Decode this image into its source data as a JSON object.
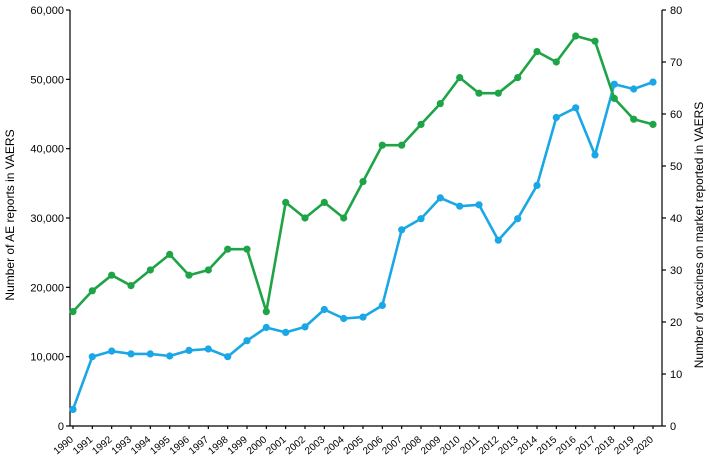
{
  "chart_data": {
    "type": "line",
    "title": "",
    "x": [
      "1990",
      "1991",
      "1992",
      "1993",
      "1994",
      "1995",
      "1996",
      "1997",
      "1998",
      "1999",
      "2000",
      "2001",
      "2002",
      "2003",
      "2004",
      "2005",
      "2006",
      "2007",
      "2008",
      "2009",
      "2010",
      "2011",
      "2012",
      "2013",
      "2014",
      "2015",
      "2016",
      "2017",
      "2018",
      "2019",
      "2020"
    ],
    "y_left": {
      "label": "Number of AE reports in VAERS",
      "range": [
        0,
        60000
      ],
      "ticks": [
        0,
        10000,
        20000,
        30000,
        40000,
        50000,
        60000
      ],
      "tick_labels": [
        "0",
        "10,000",
        "20,000",
        "30,000",
        "40,000",
        "50,000",
        "60,000"
      ]
    },
    "y_right": {
      "label": "Number of vaccines on market reported in VAERS",
      "range": [
        0,
        80
      ],
      "ticks": [
        0,
        10,
        20,
        30,
        40,
        50,
        60,
        70,
        80
      ],
      "tick_labels": [
        "0",
        "10",
        "20",
        "30",
        "40",
        "50",
        "60",
        "70",
        "80"
      ]
    },
    "series": [
      {
        "axis": "left",
        "color": "#1aa7e6",
        "values": [
          2400,
          10000,
          10800,
          10400,
          10400,
          10100,
          10900,
          11100,
          10000,
          12300,
          14200,
          13500,
          14300,
          16800,
          15500,
          15700,
          17400,
          28300,
          29900,
          32900,
          31700,
          31900,
          26800,
          29900,
          34700,
          44500,
          45900,
          39100,
          49300,
          48600,
          49600
        ]
      },
      {
        "axis": "right",
        "color": "#1ea446",
        "values": [
          22,
          26,
          29,
          27,
          30,
          33,
          29,
          30,
          34,
          34,
          22,
          43,
          40,
          43,
          40,
          47,
          54,
          54,
          58,
          62,
          67,
          64,
          64,
          67,
          72,
          70,
          75,
          74,
          63,
          59,
          58
        ]
      }
    ],
    "grid": false,
    "legend": "none"
  }
}
